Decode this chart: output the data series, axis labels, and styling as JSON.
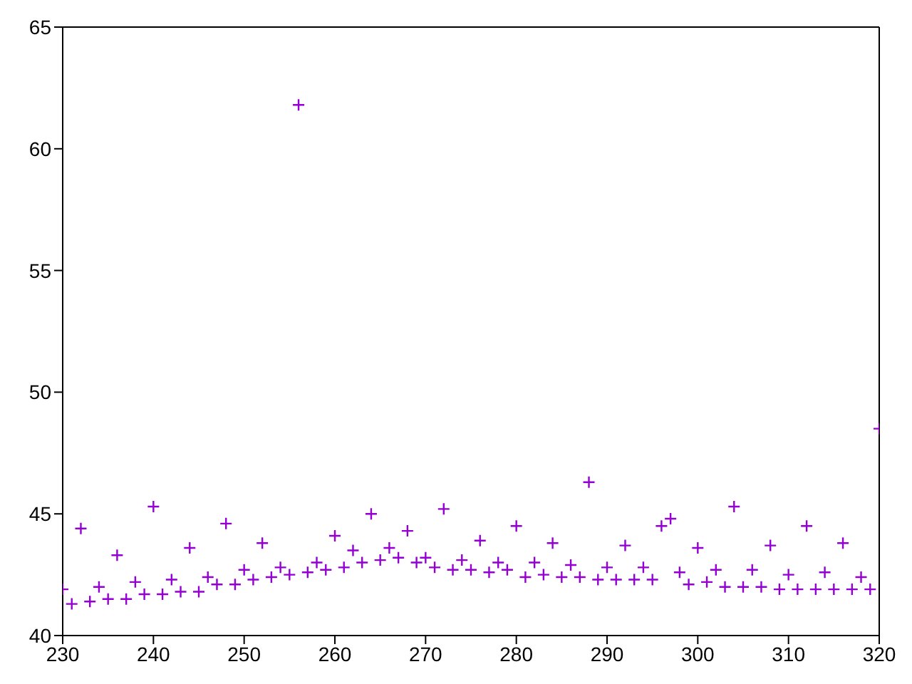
{
  "chart_data": {
    "type": "scatter",
    "marker": "cross",
    "grid": false,
    "legend": false,
    "xlim": [
      230,
      320
    ],
    "xticks": [
      230,
      240,
      250,
      260,
      270,
      280,
      290,
      300,
      310,
      320
    ],
    "ylim": [
      40,
      65
    ],
    "yticks": [
      40,
      45,
      50,
      55,
      60,
      65
    ],
    "x": [
      230,
      231,
      232,
      233,
      234,
      235,
      236,
      237,
      238,
      239,
      240,
      241,
      242,
      243,
      244,
      245,
      246,
      247,
      248,
      249,
      250,
      251,
      252,
      253,
      254,
      255,
      256,
      257,
      258,
      259,
      260,
      261,
      262,
      263,
      264,
      265,
      266,
      267,
      268,
      269,
      270,
      271,
      272,
      273,
      274,
      275,
      276,
      277,
      278,
      279,
      280,
      281,
      282,
      283,
      284,
      285,
      286,
      287,
      288,
      289,
      290,
      291,
      292,
      293,
      294,
      295,
      296,
      297,
      298,
      299,
      300,
      301,
      302,
      303,
      304,
      305,
      306,
      307,
      308,
      309,
      310,
      311,
      312,
      313,
      314,
      315,
      316,
      317,
      318,
      319,
      320
    ],
    "series": [
      {
        "color": "#9400d3",
        "values": [
          41.9,
          41.3,
          44.4,
          41.4,
          42.0,
          41.5,
          43.3,
          41.5,
          42.2,
          41.7,
          45.3,
          41.7,
          42.3,
          41.8,
          43.6,
          41.8,
          42.4,
          42.1,
          44.6,
          42.1,
          42.7,
          42.3,
          43.8,
          42.4,
          42.8,
          42.5,
          61.8,
          42.6,
          43.0,
          42.7,
          44.1,
          42.8,
          43.5,
          43.0,
          45.0,
          43.1,
          43.6,
          43.2,
          44.3,
          43.0,
          43.2,
          42.8,
          45.2,
          42.7,
          43.1,
          42.7,
          43.9,
          42.6,
          43.0,
          42.7,
          44.5,
          42.4,
          43.0,
          42.5,
          43.8,
          42.4,
          42.9,
          42.4,
          46.3,
          42.3,
          42.8,
          42.3,
          43.7,
          42.3,
          42.8,
          42.3,
          44.5,
          44.8,
          42.6,
          42.1,
          43.6,
          42.2,
          42.7,
          42.0,
          45.3,
          42.0,
          42.7,
          42.0,
          43.7,
          41.9,
          42.5,
          41.9,
          44.5,
          41.9,
          42.6,
          41.9,
          43.8,
          41.9,
          42.4,
          41.9,
          48.5
        ]
      }
    ]
  }
}
